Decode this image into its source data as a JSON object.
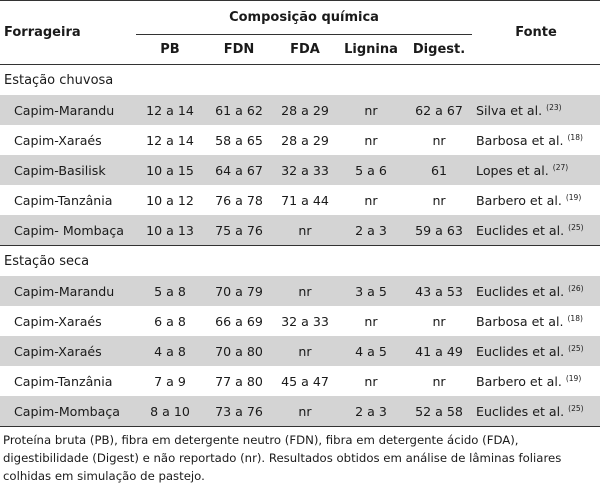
{
  "headers": {
    "forrageira": "Forrageira",
    "group": "Composição química",
    "pb": "PB",
    "fdn": "FDN",
    "fda": "FDA",
    "lignina": "Lignina",
    "digest": "Digest.",
    "fonte": "Fonte"
  },
  "sections": [
    {
      "title": "Estação chuvosa",
      "rows": [
        {
          "name": "Capim-Marandu",
          "pb": "12 a 14",
          "fdn": "61 a 62",
          "fda": "28 a 29",
          "lignina": "nr",
          "digest": "62 a 67",
          "fonte": "Silva et al.",
          "ref": "(23)"
        },
        {
          "name": "Capim-Xaraés",
          "pb": "12 a 14",
          "fdn": "58 a 65",
          "fda": "28 a 29",
          "lignina": "nr",
          "digest": "nr",
          "fonte": "Barbosa et al.",
          "ref": "(18)"
        },
        {
          "name": "Capim-Basilisk",
          "pb": "10 a 15",
          "fdn": "64 a 67",
          "fda": "32 a 33",
          "lignina": "5 a 6",
          "digest": "61",
          "fonte": "Lopes et al.",
          "ref": "(27)"
        },
        {
          "name": "Capim-Tanzânia",
          "pb": "10 a 12",
          "fdn": "76 a 78",
          "fda": "71 a 44",
          "lignina": "nr",
          "digest": "nr",
          "fonte": "Barbero et al.",
          "ref": "(19)"
        },
        {
          "name": "Capim- Mombaça",
          "pb": "10 a 13",
          "fdn": "75 a 76",
          "fda": "nr",
          "lignina": "2 a 3",
          "digest": "59 a 63",
          "fonte": "Euclides et al.",
          "ref": "(25)"
        }
      ]
    },
    {
      "title": "Estação seca",
      "rows": [
        {
          "name": "Capim-Marandu",
          "pb": "5 a 8",
          "fdn": "70 a 79",
          "fda": "nr",
          "lignina": "3 a 5",
          "digest": "43 a 53",
          "fonte": "Euclides et al.",
          "ref": "(26)"
        },
        {
          "name": "Capim-Xaraés",
          "pb": "6 a 8",
          "fdn": "66 a 69",
          "fda": "32 a 33",
          "lignina": "nr",
          "digest": "nr",
          "fonte": "Barbosa et al.",
          "ref": "(18)"
        },
        {
          "name": "Capim-Xaraés",
          "pb": "4 a 8",
          "fdn": "70 a 80",
          "fda": "nr",
          "lignina": "4 a 5",
          "digest": "41 a 49",
          "fonte": "Euclides et al.",
          "ref": "(25)"
        },
        {
          "name": "Capim-Tanzânia",
          "pb": "7 a 9",
          "fdn": "77 a 80",
          "fda": "45 a 47",
          "lignina": "nr",
          "digest": "nr",
          "fonte": "Barbero et al.",
          "ref": "(19)"
        },
        {
          "name": "Capim-Mombaça",
          "pb": "8 a 10",
          "fdn": "73 a 76",
          "fda": "nr",
          "lignina": "2 a 3",
          "digest": "52 a 58",
          "fonte": "Euclides et al.",
          "ref": "(25)"
        }
      ]
    }
  ],
  "caption": "Proteína bruta (PB), fibra em detergente neutro (FDN), fibra em detergente ácido (FDA), digestibilidade (Digest) e não reportado (nr). Resultados obtidos em análise de lâminas foliares colhidas em simulação de pastejo."
}
